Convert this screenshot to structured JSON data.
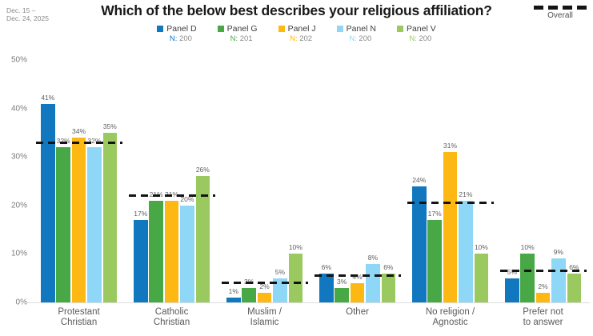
{
  "header": {
    "date_line1": "Dec. 15 –",
    "date_line2": "Dec. 24, 2025",
    "title": "Which of the below best describes your religious affiliation?",
    "overall_label": "Overall"
  },
  "legend": {
    "items": [
      {
        "label": "Panel D",
        "n_prefix": "N:",
        "n_value": "200",
        "color": "#1178bf"
      },
      {
        "label": "Panel G",
        "n_prefix": "N:",
        "n_value": "201",
        "color": "#48a845"
      },
      {
        "label": "Panel J",
        "n_prefix": "N:",
        "n_value": "202",
        "color": "#fdb813"
      },
      {
        "label": "Panel N",
        "n_prefix": "N:",
        "n_value": "200",
        "color": "#8ed7f7"
      },
      {
        "label": "Panel V",
        "n_prefix": "N:",
        "n_value": "200",
        "color": "#9aca5f"
      }
    ]
  },
  "chart_data": {
    "type": "bar",
    "title": "Which of the below best describes your religious affiliation?",
    "categories": [
      "Protestant Christian",
      "Catholic Christian",
      "Muslim / Islamic",
      "Other",
      "No religion / Agnostic",
      "Prefer not to answer"
    ],
    "category_label_lines": [
      [
        "Protestant",
        "Christian"
      ],
      [
        "Catholic",
        "Christian"
      ],
      [
        "Muslim /",
        "Islamic"
      ],
      [
        "Other"
      ],
      [
        "No religion /",
        "Agnostic"
      ],
      [
        "Prefer not",
        "to answer"
      ]
    ],
    "series": [
      {
        "name": "Panel D",
        "n": "200",
        "color": "#1178bf",
        "values": [
          41,
          17,
          1,
          6,
          24,
          5
        ]
      },
      {
        "name": "Panel G",
        "n": "201",
        "color": "#48a845",
        "values": [
          32,
          21,
          3,
          3,
          17,
          10
        ]
      },
      {
        "name": "Panel J",
        "n": "202",
        "color": "#fdb813",
        "values": [
          34,
          21,
          2,
          4,
          31,
          2
        ]
      },
      {
        "name": "Panel N",
        "n": "200",
        "color": "#8ed7f7",
        "values": [
          32,
          20,
          5,
          8,
          21,
          9
        ]
      },
      {
        "name": "Panel V",
        "n": "200",
        "color": "#9aca5f",
        "values": [
          35,
          26,
          10,
          6,
          10,
          6
        ]
      }
    ],
    "overall": {
      "label": "Overall",
      "style": "dashed-black",
      "values": [
        33,
        22,
        4,
        5.5,
        20.5,
        6.5
      ]
    },
    "value_label_format": "{v}%",
    "y_axis": {
      "ticks": [
        "0%",
        "10%",
        "20%",
        "30%",
        "40%",
        "50%"
      ],
      "min": 0,
      "max": 50,
      "grid": false
    },
    "legend_position": "top-center",
    "colors": {
      "overall_line": "#141414",
      "axis_text": "#7c7c7c",
      "value_text": "#5f5f5f"
    }
  }
}
